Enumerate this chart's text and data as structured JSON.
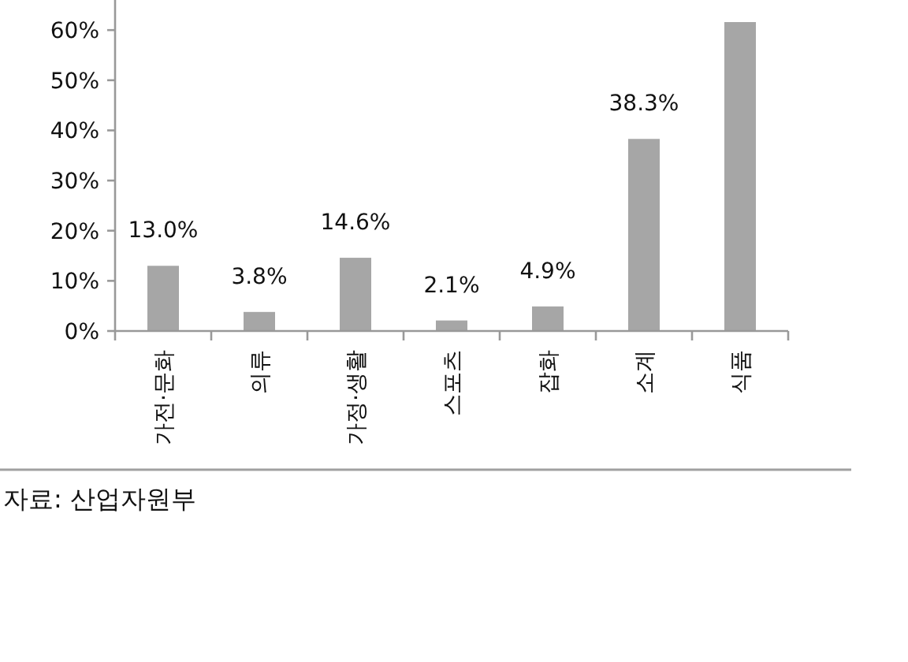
{
  "chart_data": {
    "type": "bar",
    "categories": [
      "가전·문화",
      "의류",
      "가정·생활",
      "스포츠",
      "잡화",
      "소계",
      "식품"
    ],
    "values": [
      13.0,
      3.8,
      14.6,
      2.1,
      4.9,
      38.3,
      61.6
    ],
    "value_labels": [
      "13.0%",
      "3.8%",
      "14.6%",
      "2.1%",
      "4.9%",
      "38.3%",
      null
    ],
    "color": "#a6a6a6",
    "ylim": [
      0,
      66
    ],
    "yticks": [
      {
        "value": 0,
        "label": "0%"
      },
      {
        "value": 10,
        "label": "10%"
      },
      {
        "value": 20,
        "label": "20%"
      },
      {
        "value": 30,
        "label": "30%"
      },
      {
        "value": 40,
        "label": "40%"
      },
      {
        "value": 50,
        "label": "50%"
      },
      {
        "value": 60,
        "label": "60%"
      }
    ],
    "grid": false,
    "annotations": [
      "자료: 산업자원부"
    ]
  }
}
